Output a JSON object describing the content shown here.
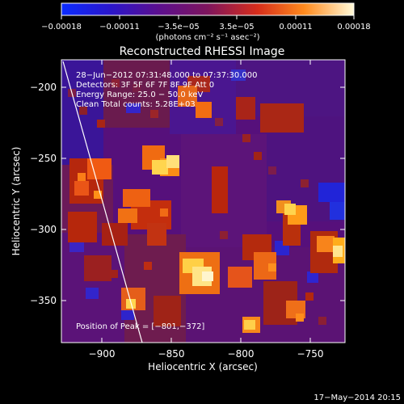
{
  "colorbar": {
    "labels": [
      "−0.00018",
      "−0.00011",
      "−3.5e−05",
      "3.5e−05",
      "0.00011",
      "0.00018"
    ],
    "units_line": "(photons cm⁻² s⁻¹ asec⁻²)",
    "range": [
      -0.00018,
      0.00018
    ]
  },
  "figure": {
    "title": "Reconstructed RHESSI Image",
    "x_label": "Heliocentric X (arcsec)",
    "y_label": "Heliocentric Y (arcsec)",
    "x_ticks": [
      "−900",
      "−850",
      "−800",
      "−750"
    ],
    "y_ticks": [
      "−200",
      "−250",
      "−300",
      "−350"
    ],
    "info_lines": [
      "28−Jun−2012 07:31:48.000 to 07:37:30.000",
      "Detectors: 3F 5F 6F 7F 8F 9F Att 0",
      "Energy Range: 25.0 − 50.0 keV",
      "Clean    Total counts: 5.28E+03"
    ],
    "peak_label": "Position of Peak = [−801,−372]"
  },
  "footer": {
    "date": "17−May−2014 20:15"
  },
  "image_palette": {
    "low": "#1c2bd8",
    "mid_low": "#52109b",
    "mid": "#7a1e54",
    "mid_high": "#e43b10",
    "high": "#ffd34d",
    "peak": "#fff6d0"
  }
}
